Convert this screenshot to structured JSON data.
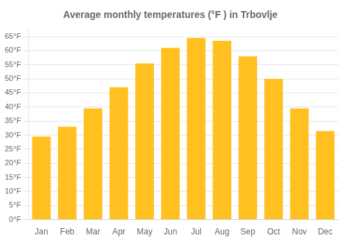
{
  "chart_data": {
    "type": "bar",
    "title": "Average monthly temperatures (°F ) in Trbovlje",
    "categories": [
      "Jan",
      "Feb",
      "Mar",
      "Apr",
      "May",
      "Jun",
      "Jul",
      "Aug",
      "Sep",
      "Oct",
      "Nov",
      "Dec"
    ],
    "values": [
      29.5,
      33.0,
      39.5,
      47.0,
      55.5,
      61.0,
      64.5,
      63.5,
      58.0,
      50.0,
      39.5,
      31.5
    ],
    "color": "#FFC020",
    "ylim": [
      0,
      68
    ],
    "yticks": [
      {
        "value": 0,
        "label": "0°F"
      },
      {
        "value": 5,
        "label": "5°F"
      },
      {
        "value": 10,
        "label": "10°F"
      },
      {
        "value": 15,
        "label": "15°F"
      },
      {
        "value": 20,
        "label": "20°F"
      },
      {
        "value": 25,
        "label": "25°F"
      },
      {
        "value": 30,
        "label": "30°F"
      },
      {
        "value": 35,
        "label": "35°F"
      },
      {
        "value": 40,
        "label": "40°F"
      },
      {
        "value": 45,
        "label": "45°F"
      },
      {
        "value": 50,
        "label": "50°F"
      },
      {
        "value": 55,
        "label": "55°F"
      },
      {
        "value": 60,
        "label": "60°F"
      },
      {
        "value": 65,
        "label": "65°F"
      }
    ],
    "grid": true
  }
}
